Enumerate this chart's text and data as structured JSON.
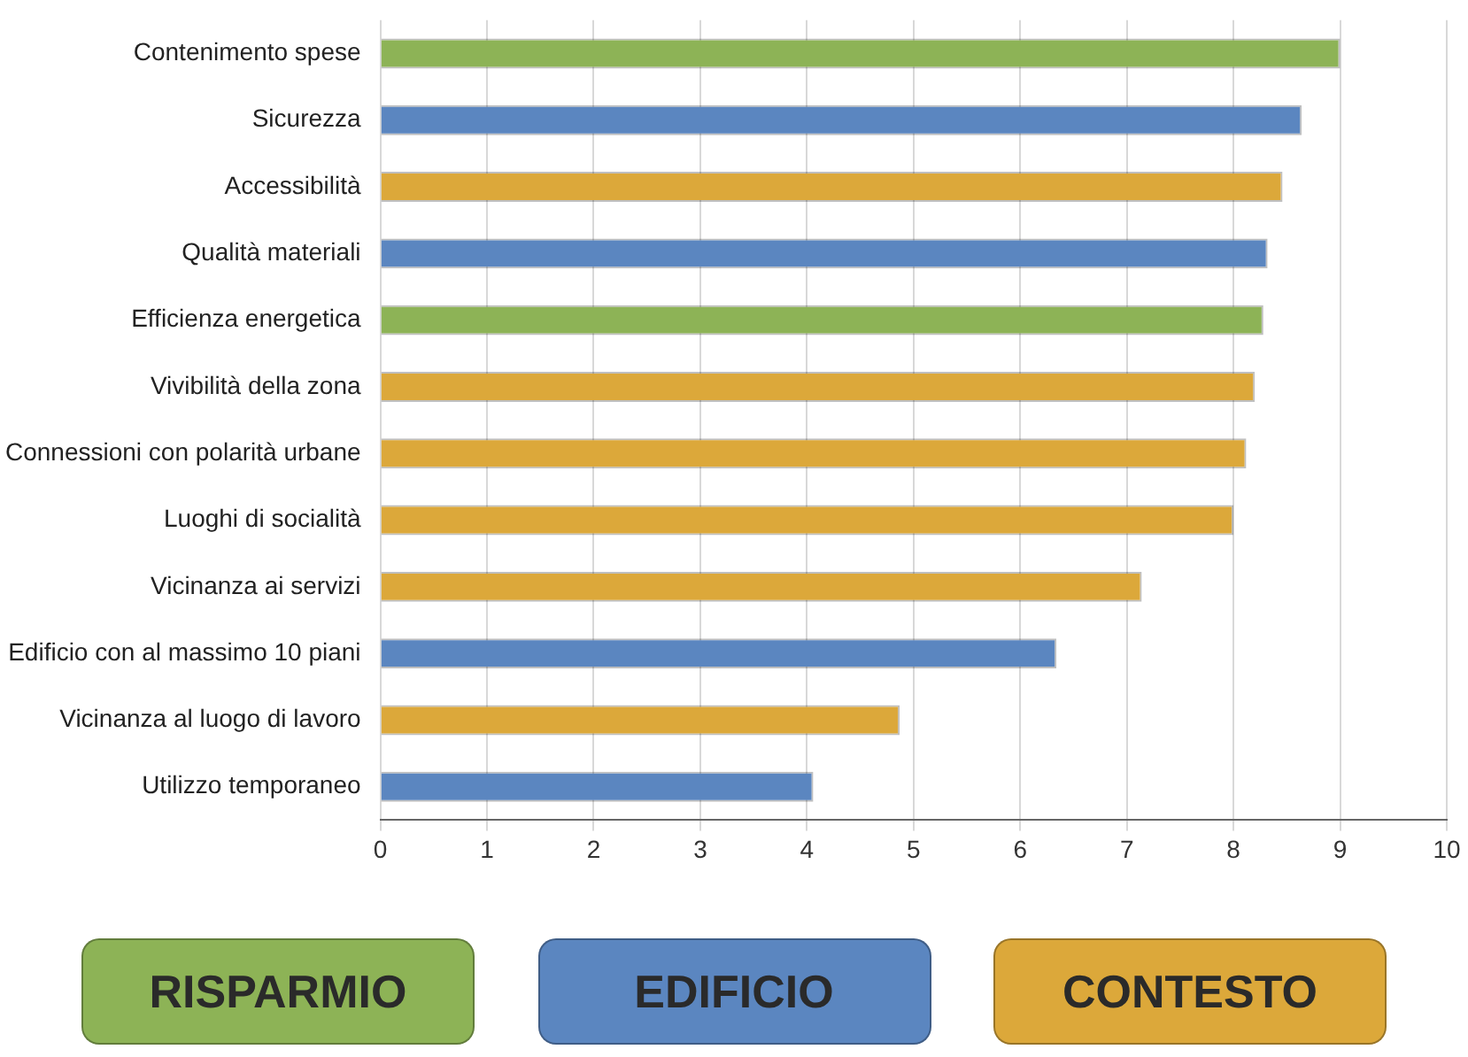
{
  "chart_data": {
    "type": "bar",
    "orientation": "horizontal",
    "categories": [
      "Contenimento spese",
      "Sicurezza",
      "Accessibilità",
      "Qualità materiali",
      "Efficienza energetica",
      "Vivibilità della zona",
      "Connessioni con polarità urbane",
      "Luoghi di socialità",
      "Vicinanza ai servizi",
      "Edificio con al massimo 10 piani",
      "Vicinanza al luogo di lavoro",
      "Utilizzo temporaneo"
    ],
    "series": [
      {
        "name": "RISPARMIO",
        "color": "#8db356",
        "values": [
          9.0,
          null,
          null,
          null,
          8.28,
          null,
          null,
          null,
          null,
          null,
          null,
          null
        ]
      },
      {
        "name": "EDIFICIO",
        "color": "#5b86c0",
        "values": [
          null,
          8.64,
          null,
          8.32,
          null,
          null,
          null,
          null,
          null,
          6.34,
          null,
          4.06
        ]
      },
      {
        "name": "CONTESTO",
        "color": "#dca83a",
        "values": [
          null,
          null,
          8.46,
          null,
          null,
          8.2,
          8.12,
          8.0,
          7.14,
          null,
          4.87,
          null
        ]
      }
    ],
    "xlim": [
      0,
      10
    ],
    "xticks": [
      0,
      1,
      2,
      3,
      4,
      5,
      6,
      7,
      8,
      9,
      10
    ],
    "grid": "x",
    "legend": "bottom"
  }
}
